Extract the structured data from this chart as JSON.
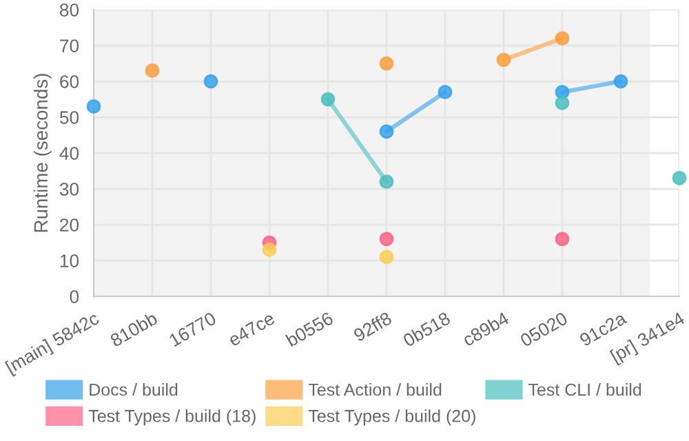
{
  "chart_data": {
    "type": "line",
    "ylabel": "Runtime (seconds)",
    "categories": [
      "[main] 5842c",
      "810bb",
      "16770",
      "e47ce",
      "b0556",
      "92ff8",
      "0b518",
      "c89b4",
      "05020",
      "91c2a",
      "[pr] 341e4"
    ],
    "series": [
      {
        "name": "Docs / build",
        "color": "#36a2eb",
        "values": [
          53,
          null,
          60,
          null,
          null,
          46,
          57,
          null,
          57,
          60,
          null
        ]
      },
      {
        "name": "Test Action / build",
        "color": "#ff9f40",
        "values": [
          null,
          63,
          null,
          null,
          null,
          65,
          null,
          66,
          72,
          null,
          null
        ]
      },
      {
        "name": "Test CLI / build",
        "color": "#4bc0c0",
        "values": [
          null,
          null,
          null,
          null,
          55,
          32,
          null,
          null,
          54,
          null,
          33
        ]
      },
      {
        "name": "Test Types / build (18)",
        "type": "scatter",
        "color": "#ff6384",
        "values": [
          null,
          null,
          null,
          15,
          null,
          16,
          null,
          null,
          16,
          null,
          null
        ]
      },
      {
        "name": "Test Types / build (20)",
        "type": "scatter",
        "color": "#ffcd56",
        "values": [
          null,
          null,
          null,
          13,
          null,
          11,
          null,
          null,
          null,
          null,
          null
        ]
      }
    ],
    "ylim": [
      0,
      80
    ],
    "yticks": [
      0,
      10,
      20,
      30,
      40,
      50,
      60,
      70,
      80
    ],
    "grid": true,
    "legend": "bottom",
    "marker": "circle",
    "line_style": "solid"
  }
}
